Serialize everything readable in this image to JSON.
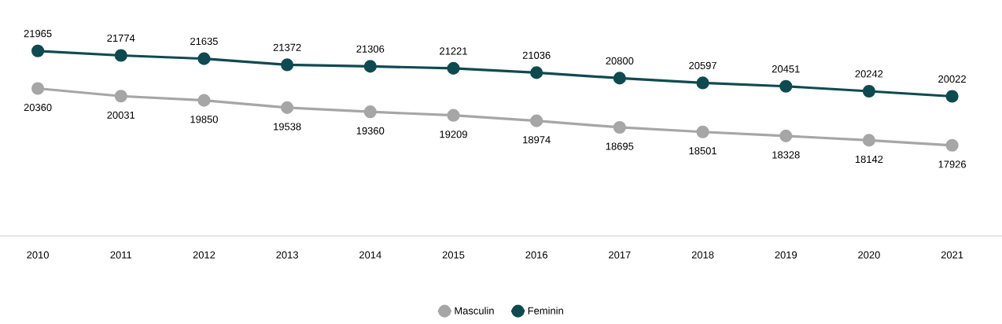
{
  "chart_data": {
    "type": "line",
    "categories": [
      "2010",
      "2011",
      "2012",
      "2013",
      "2014",
      "2015",
      "2016",
      "2017",
      "2018",
      "2019",
      "2020",
      "2021"
    ],
    "series": [
      {
        "name": "Masculin",
        "color": "#a6a6a6",
        "values": [
          20360,
          20031,
          19850,
          19538,
          19360,
          19209,
          18974,
          18695,
          18501,
          18328,
          18142,
          17926
        ]
      },
      {
        "name": "Feminin",
        "color": "#0e4b50",
        "values": [
          21965,
          21774,
          21635,
          21372,
          21306,
          21221,
          21036,
          20800,
          20597,
          20451,
          20242,
          20022
        ]
      }
    ],
    "data_labels": true,
    "marker": "circle",
    "line_style": "solid",
    "legend": "bottom",
    "tick_labels": "x"
  }
}
